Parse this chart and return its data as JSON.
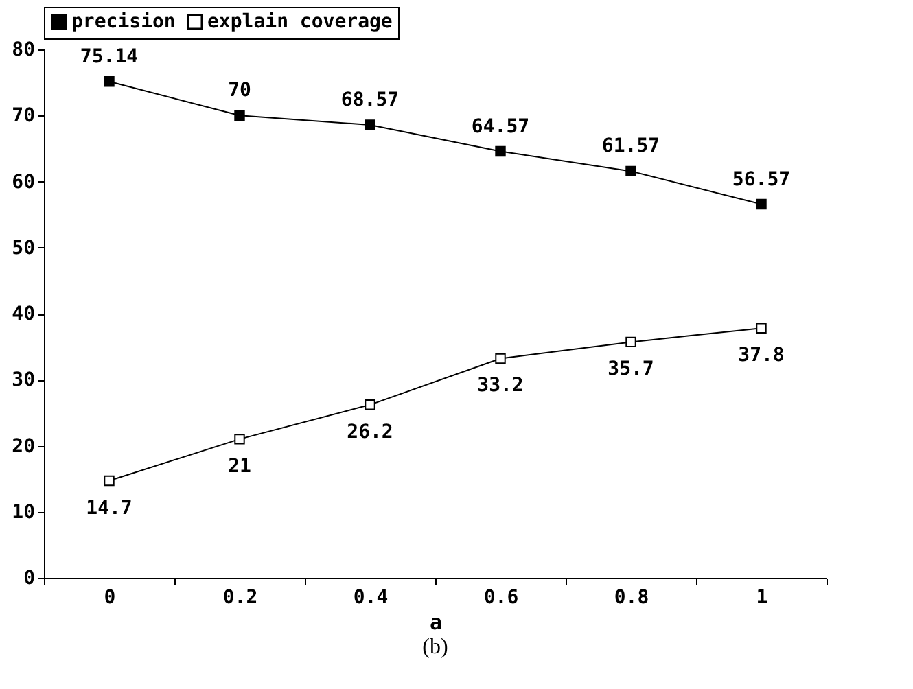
{
  "chart_data": {
    "type": "line",
    "xlabel": "a",
    "categories": [
      "0",
      "0.2",
      "0.4",
      "0.6",
      "0.8",
      "1"
    ],
    "series": [
      {
        "name": "precision",
        "color": "#000000",
        "values": [
          75.14,
          70,
          68.57,
          64.57,
          61.57,
          56.57
        ]
      },
      {
        "name": "explain coverage",
        "color": "#000000",
        "values": [
          14.7,
          21,
          26.2,
          33.2,
          35.7,
          37.8
        ]
      }
    ],
    "ylim": [
      0,
      80
    ],
    "yticks": [
      0,
      10,
      20,
      30,
      40,
      50,
      60,
      70,
      80
    ],
    "grid": false,
    "legend": "top",
    "marker": "square",
    "line_style": "solid",
    "data_labels": true,
    "annotations": [
      "(b)"
    ]
  }
}
